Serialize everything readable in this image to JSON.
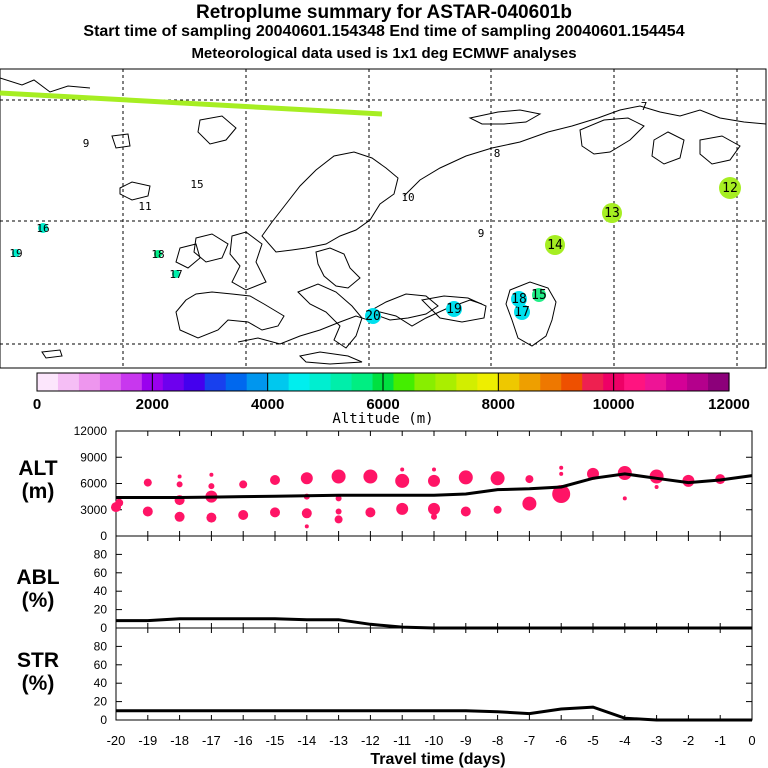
{
  "header": {
    "title": "Retroplume summary for ASTAR-040601b",
    "subtitle": "Start time of sampling 20040601.154348     End time of sampling 20040601.154454",
    "meteo": "Meteorological data used is 1x1 deg ECMWF analyses"
  },
  "colors": {
    "trajectory": "#a6ee22",
    "profile_points": "#ff1466",
    "line": "#000000",
    "coast": "#000000"
  },
  "chart_data": [
    {
      "type": "map",
      "name": "retroplume-map",
      "markers": [
        {
          "label": "7",
          "color": "#e8ee00"
        },
        {
          "label": "8",
          "color": "#d8ee00"
        },
        {
          "label": "9",
          "color": "#a0ee00"
        },
        {
          "label": "9",
          "color": "#a0ee00"
        },
        {
          "label": "10",
          "color": "#e8ee00"
        },
        {
          "label": "11",
          "color": "#e8ee00"
        },
        {
          "label": "12",
          "color": "#a6ee22"
        },
        {
          "label": "13",
          "color": "#a6ee22"
        },
        {
          "label": "14",
          "color": "#a6ee22"
        },
        {
          "label": "15",
          "color": "#a6ee22"
        },
        {
          "label": "15",
          "color": "#22ee88"
        },
        {
          "label": "16",
          "color": "#00eecc"
        },
        {
          "label": "17",
          "color": "#00eeaa"
        },
        {
          "label": "17",
          "color": "#00e0ee"
        },
        {
          "label": "18",
          "color": "#00ee88"
        },
        {
          "label": "18",
          "color": "#00e0ee"
        },
        {
          "label": "19",
          "color": "#00eecc"
        },
        {
          "label": "19",
          "color": "#00e0ee"
        },
        {
          "label": "20",
          "color": "#00e0ee"
        }
      ]
    },
    {
      "type": "colorbar",
      "name": "altitude-colorbar",
      "title": "Altitude (m)",
      "ticks": [
        "0",
        "2000",
        "4000",
        "6000",
        "8000",
        "10000",
        "12000"
      ],
      "range": [
        0,
        12000
      ],
      "colors": [
        "#fce6fc",
        "#f5bef5",
        "#ee96ee",
        "#e066ee",
        "#c837ee",
        "#9a00ee",
        "#6e00ee",
        "#4400ee",
        "#1840ee",
        "#0068ee",
        "#0096ee",
        "#00c8ee",
        "#00eeee",
        "#00eed0",
        "#00eeaa",
        "#00ee82",
        "#00e040",
        "#44ee00",
        "#88ee00",
        "#aaee00",
        "#d2ee00",
        "#eeee00",
        "#eec800",
        "#ee9f00",
        "#ee7800",
        "#ee5000",
        "#ee2050",
        "#ee0066",
        "#ff1480",
        "#ee1496",
        "#d40096",
        "#b4008c",
        "#8c007a"
      ]
    },
    {
      "type": "scatter+line",
      "name": "ALT",
      "ylabel": "ALT\n(m)",
      "ylim": [
        0,
        12000
      ],
      "yticks": [
        "0",
        "3000",
        "6000",
        "9000",
        "12000"
      ],
      "xlim": [
        -20,
        0
      ],
      "x": [
        -20,
        -19,
        -18,
        -17,
        -16,
        -15,
        -14,
        -13,
        -12,
        -11,
        -10,
        -9,
        -8,
        -7,
        -6,
        -5,
        -4,
        -3,
        -2,
        -1,
        0
      ],
      "line": [
        4400,
        4400,
        4400,
        4450,
        4500,
        4550,
        4600,
        4650,
        4650,
        4650,
        4650,
        4800,
        5300,
        5400,
        5600,
        6600,
        7100,
        6600,
        6100,
        6400,
        6900
      ],
      "points": [
        [
          -20,
          3300,
          5
        ],
        [
          -19.9,
          3800,
          4
        ],
        [
          -19,
          6100,
          4
        ],
        [
          -19,
          2800,
          5
        ],
        [
          -18,
          6800,
          2
        ],
        [
          -18,
          5900,
          3
        ],
        [
          -18,
          4100,
          5
        ],
        [
          -18,
          2200,
          5
        ],
        [
          -17,
          7000,
          2
        ],
        [
          -17,
          5700,
          3
        ],
        [
          -17,
          4500,
          6
        ],
        [
          -17,
          2100,
          5
        ],
        [
          -16,
          5900,
          4
        ],
        [
          -16,
          2400,
          5
        ],
        [
          -15,
          6400,
          5
        ],
        [
          -15,
          2700,
          5
        ],
        [
          -14,
          6600,
          6
        ],
        [
          -14,
          4500,
          3
        ],
        [
          -14,
          2600,
          5
        ],
        [
          -14,
          1100,
          2
        ],
        [
          -13,
          6800,
          7
        ],
        [
          -13,
          4300,
          3
        ],
        [
          -13,
          2800,
          3
        ],
        [
          -13,
          1900,
          4
        ],
        [
          -12,
          6800,
          7
        ],
        [
          -12,
          2700,
          5
        ],
        [
          -11,
          7600,
          2
        ],
        [
          -11,
          6300,
          7
        ],
        [
          -11,
          3100,
          6
        ],
        [
          -10,
          7600,
          2
        ],
        [
          -10,
          6300,
          6
        ],
        [
          -10,
          3100,
          6
        ],
        [
          -10,
          2200,
          3
        ],
        [
          -9,
          6700,
          7
        ],
        [
          -9,
          2800,
          5
        ],
        [
          -8,
          6600,
          7
        ],
        [
          -8,
          3000,
          4
        ],
        [
          -7,
          6500,
          4
        ],
        [
          -7,
          3700,
          7
        ],
        [
          -6,
          7800,
          2
        ],
        [
          -6,
          7100,
          2
        ],
        [
          -6,
          4800,
          9
        ],
        [
          -5,
          7100,
          6
        ],
        [
          -4,
          7200,
          7
        ],
        [
          -4,
          4300,
          2
        ],
        [
          -3,
          6800,
          7
        ],
        [
          -3,
          5600,
          2
        ],
        [
          -2,
          6300,
          6
        ],
        [
          -1,
          6500,
          5
        ]
      ]
    },
    {
      "type": "line",
      "name": "ABL",
      "ylabel": "ABL\n(%)",
      "ylim": [
        0,
        100
      ],
      "yticks": [
        "0",
        "20",
        "40",
        "60",
        "80"
      ],
      "x": [
        -20,
        -19,
        -18,
        -17,
        -16,
        -15,
        -14,
        -13,
        -12,
        -11,
        -10,
        -9,
        -8,
        -7,
        -6,
        -5,
        -4,
        -3,
        -2,
        -1,
        0
      ],
      "values": [
        8,
        8,
        10,
        10,
        10,
        10,
        9,
        9,
        4,
        1,
        0,
        0,
        0,
        0,
        0,
        0,
        0,
        0,
        0,
        0,
        0
      ]
    },
    {
      "type": "line",
      "name": "STR",
      "ylabel": "STR\n(%)",
      "ylim": [
        0,
        100
      ],
      "yticks": [
        "0",
        "20",
        "40",
        "60",
        "80"
      ],
      "x": [
        -20,
        -19,
        -18,
        -17,
        -16,
        -15,
        -14,
        -13,
        -12,
        -11,
        -10,
        -9,
        -8,
        -7,
        -6,
        -5,
        -4,
        -3,
        -2,
        -1,
        0
      ],
      "values": [
        10,
        10,
        10,
        10,
        10,
        10,
        10,
        10,
        10,
        10,
        10,
        10,
        9,
        7,
        12,
        14,
        2,
        0,
        0,
        0,
        0
      ],
      "xlabel": "Travel time (days)",
      "xticks": [
        "-20",
        "-19",
        "-18",
        "-17",
        "-16",
        "-15",
        "-14",
        "-13",
        "-12",
        "-11",
        "-10",
        "-9",
        "-8",
        "-7",
        "-6",
        "-5",
        "-4",
        "-3",
        "-2",
        "-1",
        "0"
      ]
    }
  ]
}
